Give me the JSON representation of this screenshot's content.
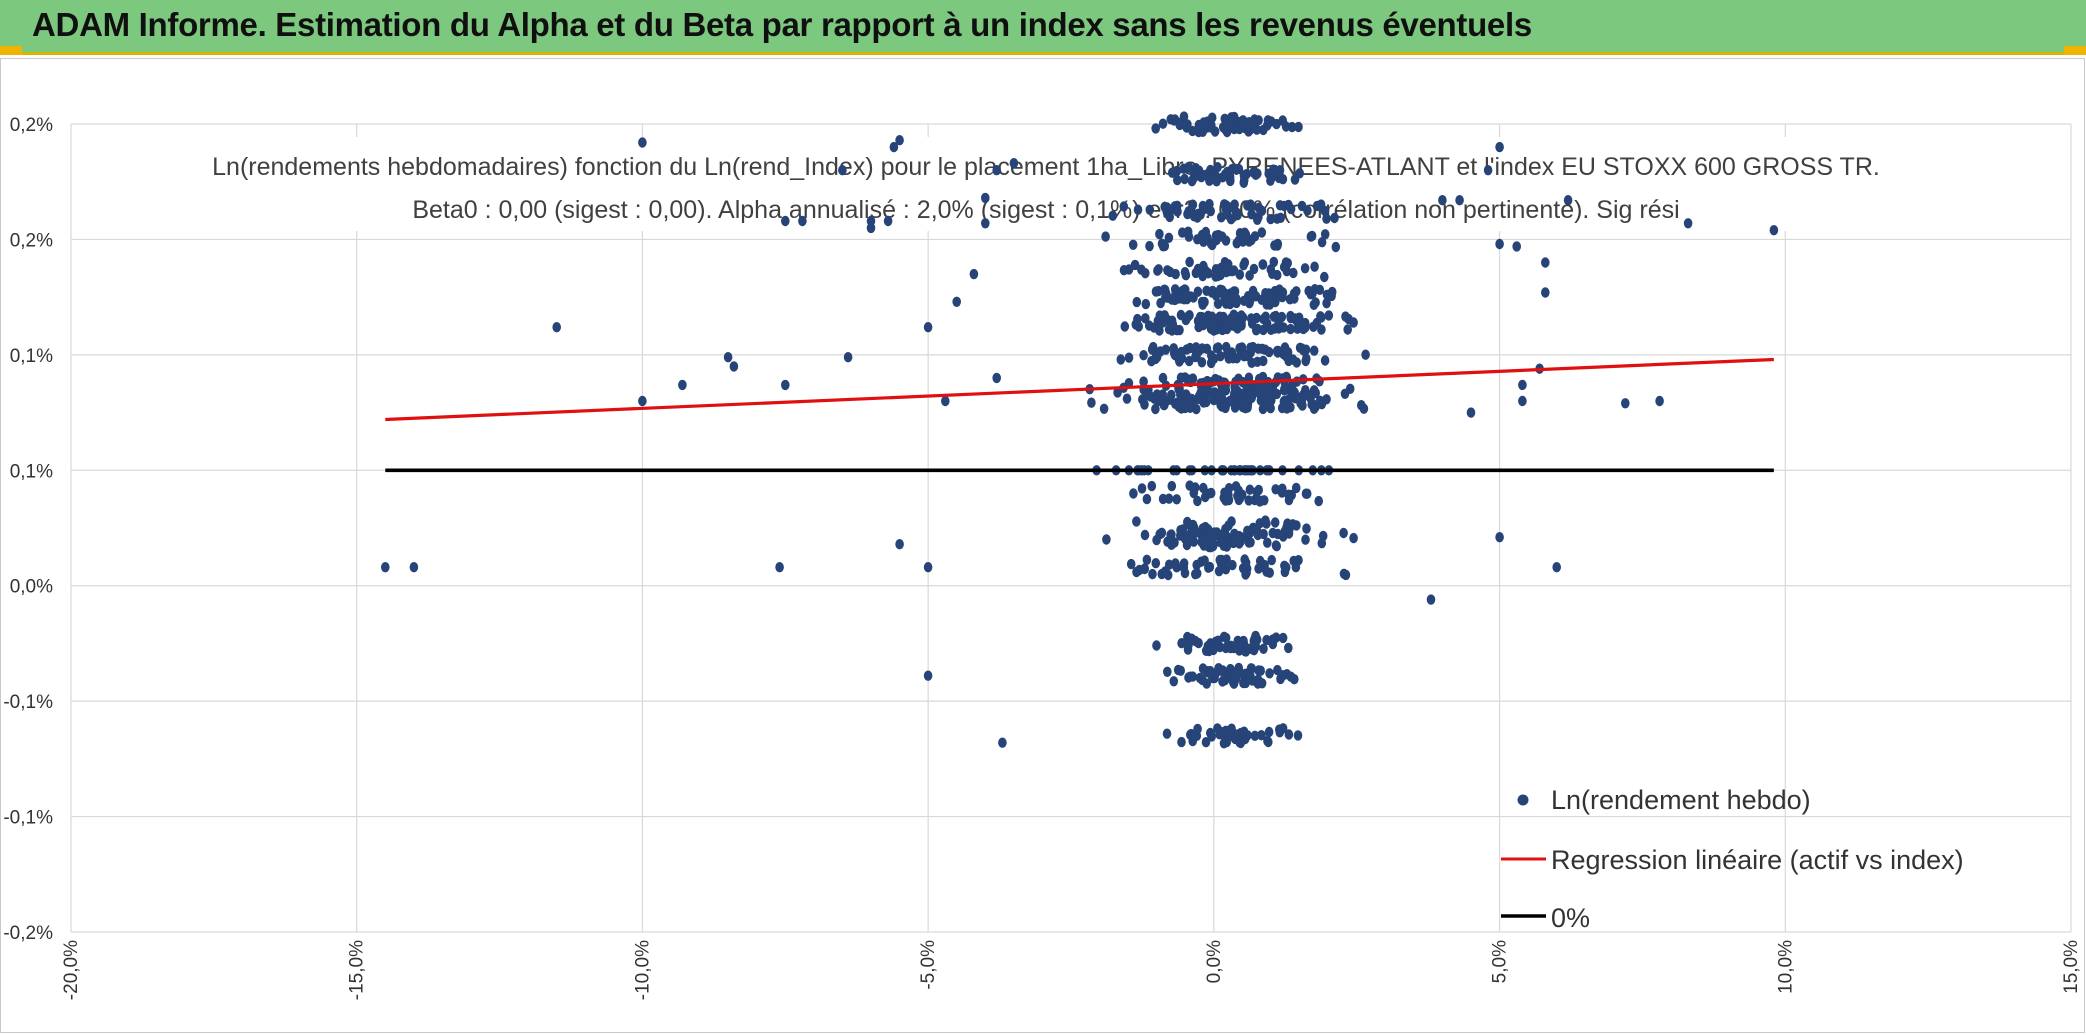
{
  "banner": {
    "title": "ADAM Informe. Estimation du Alpha et du Beta par rapport à un index sans les revenus éventuels",
    "color": "#7dc87f"
  },
  "chart_data": {
    "type": "scatter",
    "title": "Ln(rendements hebdomadaires) fonction du Ln(rend_Index) pour le placement 1ha_Libre_PYRENEES-ATLANT et l'index EU STOXX 600 GROSS TR.",
    "subtitle": "Beta0 : 0,00 (sigest : 0,00). Alpha annualisé : 2,0% (sigest : 0,1%) et r2 : 0,0% (corrélation non pertinente). Sig rési",
    "xlabel": "",
    "ylabel": "",
    "xlim": [
      -0.2,
      0.15
    ],
    "ylim": [
      -0.002,
      0.0015
    ],
    "grid": true,
    "legend_position": "bottom-right",
    "x_ticks": [
      "-20,0%",
      "-15,0%",
      "-10,0%",
      "-5,0%",
      "0,0%",
      "5,0%",
      "10,0%",
      "15,0%"
    ],
    "y_ticks": [
      "0,2%",
      "0,2%",
      "0,1%",
      "0,1%",
      "0,0%",
      "-0,1%",
      "-0,1%",
      "-0,2%"
    ],
    "series": [
      {
        "name": "Ln(rendement hebdo)",
        "kind": "scatter",
        "color": "#264478",
        "points_outliers": [
          [
            -0.145,
            -0.00042
          ],
          [
            -0.14,
            -0.00042
          ],
          [
            -0.115,
            0.00062
          ],
          [
            -0.1,
            0.00142
          ],
          [
            -0.1,
            0.0003
          ],
          [
            -0.093,
            0.00037
          ],
          [
            -0.085,
            0.00049
          ],
          [
            -0.084,
            0.00045
          ],
          [
            -0.075,
            0.00108
          ],
          [
            -0.072,
            0.00108
          ],
          [
            -0.075,
            0.00037
          ],
          [
            -0.076,
            -0.00042
          ],
          [
            -0.065,
            0.0013
          ],
          [
            -0.064,
            0.00049
          ],
          [
            -0.06,
            0.00105
          ],
          [
            -0.06,
            0.00108
          ],
          [
            -0.057,
            0.00108
          ],
          [
            -0.056,
            0.0014
          ],
          [
            -0.055,
            0.00143
          ],
          [
            -0.055,
            -0.00032
          ],
          [
            -0.05,
            0.00062
          ],
          [
            -0.05,
            -0.00042
          ],
          [
            -0.05,
            -0.00089
          ],
          [
            -0.047,
            0.0003
          ],
          [
            -0.045,
            0.00073
          ],
          [
            -0.042,
            0.00085
          ],
          [
            -0.04,
            0.00118
          ],
          [
            -0.04,
            0.00107
          ],
          [
            -0.038,
            0.0004
          ],
          [
            -0.038,
            0.0013
          ],
          [
            -0.037,
            -0.00118
          ],
          [
            -0.035,
            0.00133
          ],
          [
            0.048,
            0.0013
          ],
          [
            0.05,
            0.0014
          ],
          [
            0.05,
            0.00098
          ],
          [
            0.05,
            -0.00029
          ],
          [
            0.053,
            0.00097
          ],
          [
            0.054,
            0.0003
          ],
          [
            0.054,
            0.00037
          ],
          [
            0.057,
            0.00044
          ],
          [
            0.058,
            0.00077
          ],
          [
            0.058,
            0.0009
          ],
          [
            0.06,
            -0.00042
          ],
          [
            0.062,
            0.00117
          ],
          [
            0.072,
            0.00029
          ],
          [
            0.078,
            0.0003
          ],
          [
            0.083,
            0.00107
          ],
          [
            0.098,
            0.00104
          ],
          [
            0.038,
            -0.00056
          ],
          [
            0.04,
            0.00117
          ],
          [
            0.043,
            0.00117
          ],
          [
            0.045,
            0.00025
          ]
        ],
        "cluster": {
          "x_center": 0.003,
          "x_spread": 0.018,
          "count": 1150,
          "y_levels": [
            0.0015,
            0.00128,
            0.00112,
            0.001,
            0.00087,
            0.00075,
            0.00064,
            0.0005,
            0.00037,
            0.0003,
            0.0,
            -0.0001,
            -0.00025,
            -0.0003,
            -0.00042,
            -0.00075,
            -0.00089,
            -0.00115
          ]
        }
      },
      {
        "name": "Regression linéaire (actif vs index)",
        "kind": "line",
        "color": "#e01010",
        "x": [
          -0.145,
          0.098
        ],
        "y": [
          0.00022,
          0.00048
        ]
      },
      {
        "name": "0%",
        "kind": "line",
        "color": "#000000",
        "x": [
          -0.145,
          0.098
        ],
        "y": [
          0.0,
          0.0
        ]
      }
    ]
  }
}
